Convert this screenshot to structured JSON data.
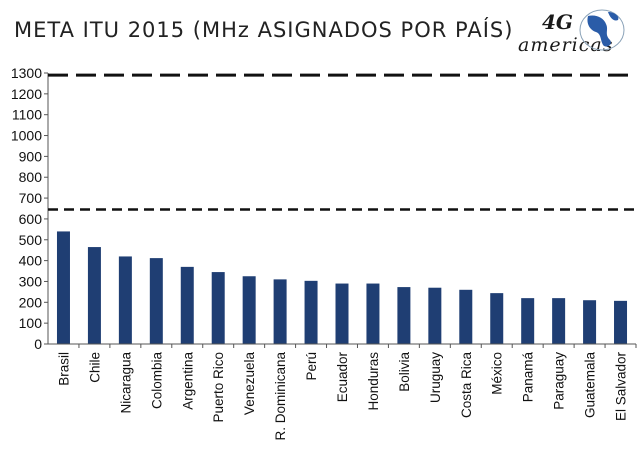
{
  "header": {
    "title": "META ITU 2015 (MHz ASIGNADOS POR PAÍS)"
  },
  "logo": {
    "mark": "4G",
    "brand": "americas"
  },
  "chart_data": {
    "type": "bar",
    "title": "META ITU 2015 (MHz ASIGNADOS POR PAÍS)",
    "xlabel": "",
    "ylabel": "",
    "ylim": [
      0,
      1300
    ],
    "yticks": [
      0,
      100,
      200,
      300,
      400,
      500,
      600,
      700,
      800,
      900,
      1000,
      1100,
      1200,
      1300
    ],
    "categories": [
      "Brasil",
      "Chile",
      "Nicaragua",
      "Colombia",
      "Argentina",
      "Puerto Rico",
      "Venezuela",
      "R. Dominicana",
      "Perú",
      "Ecuador",
      "Honduras",
      "Bolivia",
      "Uruguay",
      "Costa Rica",
      "México",
      "Panamá",
      "Paraguay",
      "Guatemala",
      "El Salvador"
    ],
    "values": [
      540,
      465,
      420,
      412,
      370,
      345,
      325,
      310,
      303,
      290,
      290,
      273,
      270,
      260,
      244,
      220,
      220,
      210,
      207
    ],
    "reference_lines": [
      1290,
      645
    ],
    "grid": false,
    "legend": "none",
    "colors": {
      "bar": "#1f3e73",
      "reference": "#111111"
    }
  }
}
